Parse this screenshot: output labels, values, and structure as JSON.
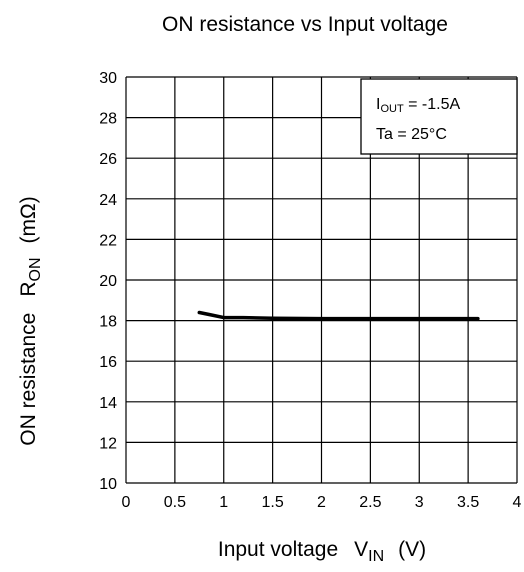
{
  "chart_data": {
    "type": "line",
    "title": "ON resistance vs Input voltage",
    "xlabel": {
      "main": "Input voltage",
      "symbol": "V",
      "subscript": "IN",
      "unit": "(V)"
    },
    "ylabel": {
      "main": "ON resistance",
      "symbol": "R",
      "subscript": "ON",
      "unit": "(mΩ)"
    },
    "xlim": [
      0,
      4
    ],
    "ylim": [
      10,
      30
    ],
    "xticks": [
      0,
      0.5,
      1,
      1.5,
      2,
      2.5,
      3,
      3.5,
      4
    ],
    "xtick_labels": [
      "0",
      "0.5",
      "1",
      "1.5",
      "2",
      "2.5",
      "3",
      "3.5",
      "4"
    ],
    "yticks": [
      10,
      12,
      14,
      16,
      18,
      20,
      22,
      24,
      26,
      28,
      30
    ],
    "ytick_labels": [
      "10",
      "12",
      "14",
      "16",
      "18",
      "20",
      "22",
      "24",
      "26",
      "28",
      "30"
    ],
    "grid": true,
    "legend": {
      "placement": "top-right",
      "line1": {
        "prefix": "I",
        "subscript": "OUT",
        "suffix": " = -1.5A"
      },
      "line2": "Ta = 25°C"
    },
    "series": [
      {
        "color": "#000000",
        "x": [
          0.75,
          0.85,
          1.0,
          1.2,
          1.5,
          2.0,
          2.5,
          3.0,
          3.6
        ],
        "y": [
          18.4,
          18.3,
          18.15,
          18.15,
          18.12,
          18.1,
          18.1,
          18.1,
          18.1
        ]
      }
    ]
  }
}
